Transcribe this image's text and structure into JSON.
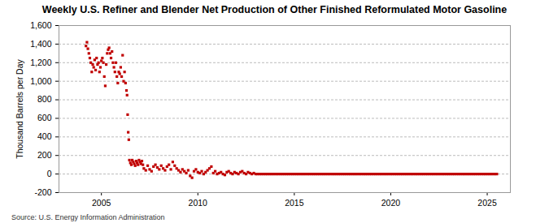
{
  "chart_data": {
    "type": "scatter",
    "title": "Weekly U.S. Refiner and Blender Net Production of Other Finished Reformulated Motor Gasoline",
    "y_label": "Thousand Barrels per Day",
    "source": "Source: U.S. Energy Information Administration",
    "color": "#c00000",
    "marker": "square",
    "grid": true,
    "xlim": [
      2002.8,
      2026.2
    ],
    "xticks": [
      2005,
      2010,
      2015,
      2020,
      2025
    ],
    "ylim": [
      -200,
      1600
    ],
    "yticks": [
      -200,
      0,
      200,
      400,
      600,
      800,
      {
        "value": 1000,
        "label": "1,000"
      },
      {
        "value": 1200,
        "label": "1,200"
      },
      {
        "value": 1400,
        "label": "1,400"
      },
      {
        "value": 1600,
        "label": "1,600"
      }
    ],
    "x": [
      2004.2,
      2004.25,
      2004.3,
      2004.35,
      2004.4,
      2004.45,
      2004.5,
      2004.55,
      2004.6,
      2004.65,
      2004.7,
      2004.75,
      2004.8,
      2004.85,
      2004.9,
      2004.95,
      2005.0,
      2005.05,
      2005.1,
      2005.15,
      2005.2,
      2005.25,
      2005.3,
      2005.35,
      2005.4,
      2005.45,
      2005.5,
      2005.55,
      2005.6,
      2005.65,
      2005.7,
      2005.75,
      2005.8,
      2005.85,
      2005.9,
      2005.95,
      2006.0,
      2006.05,
      2006.1,
      2006.15,
      2006.2,
      2006.25,
      2006.3,
      2006.33,
      2006.36,
      2006.39,
      2006.42,
      2006.45,
      2006.5,
      2006.55,
      2006.6,
      2006.65,
      2006.7,
      2006.75,
      2006.8,
      2006.85,
      2006.9,
      2006.95,
      2007.0,
      2007.05,
      2007.1,
      2007.15,
      2007.2,
      2007.3,
      2007.4,
      2007.5,
      2007.6,
      2007.7,
      2007.8,
      2007.9,
      2008.0,
      2008.1,
      2008.2,
      2008.3,
      2008.4,
      2008.5,
      2008.6,
      2008.7,
      2008.8,
      2008.9,
      2009.0,
      2009.1,
      2009.2,
      2009.3,
      2009.4,
      2009.5,
      2009.6,
      2009.7,
      2009.8,
      2009.9,
      2010.0,
      2010.1,
      2010.2,
      2010.3,
      2010.4,
      2010.5,
      2010.6,
      2010.7,
      2010.8,
      2010.9,
      2011.0,
      2011.1,
      2011.2,
      2011.3,
      2011.4,
      2011.5,
      2011.6,
      2011.7,
      2011.8,
      2011.9,
      2012.0,
      2012.1,
      2012.2,
      2012.3,
      2012.4,
      2012.5,
      2012.6,
      2012.7,
      2012.8,
      2012.9,
      2013.0,
      2013.1,
      2013.2,
      2013.3,
      2013.4,
      2013.5,
      2013.6,
      2013.7,
      2013.8,
      2013.9,
      2014.0,
      2014.1,
      2014.2,
      2014.3,
      2014.4,
      2014.5,
      2014.6,
      2014.7,
      2014.8,
      2014.9,
      2015.0,
      2015.1,
      2015.2,
      2015.3,
      2015.4,
      2015.5,
      2015.6,
      2015.7,
      2015.8,
      2015.9,
      2016.0,
      2016.1,
      2016.2,
      2016.3,
      2016.4,
      2016.5,
      2016.6,
      2016.7,
      2016.8,
      2016.9,
      2017.0,
      2017.1,
      2017.2,
      2017.3,
      2017.4,
      2017.5,
      2017.6,
      2017.7,
      2017.8,
      2017.9,
      2018.0,
      2018.1,
      2018.2,
      2018.3,
      2018.4,
      2018.5,
      2018.6,
      2018.7,
      2018.8,
      2018.9,
      2019.0,
      2019.1,
      2019.2,
      2019.3,
      2019.4,
      2019.5,
      2019.6,
      2019.7,
      2019.8,
      2019.9,
      2020.0,
      2020.1,
      2020.2,
      2020.3,
      2020.4,
      2020.5,
      2020.6,
      2020.7,
      2020.8,
      2020.9,
      2021.0,
      2021.1,
      2021.2,
      2021.3,
      2021.4,
      2021.5,
      2021.6,
      2021.7,
      2021.8,
      2021.9,
      2022.0,
      2022.1,
      2022.2,
      2022.3,
      2022.4,
      2022.5,
      2022.6,
      2022.7,
      2022.8,
      2022.9,
      2023.0,
      2023.1,
      2023.2,
      2023.3,
      2023.4,
      2023.5,
      2023.6,
      2023.7,
      2023.8,
      2023.9,
      2024.0,
      2024.1,
      2024.2,
      2024.3,
      2024.4,
      2024.5,
      2024.6,
      2024.7,
      2024.8,
      2024.9,
      2025.0,
      2025.1,
      2025.2,
      2025.3,
      2025.4,
      2025.5
    ],
    "values": [
      1380,
      1420,
      1350,
      1300,
      1250,
      1200,
      1100,
      1180,
      1150,
      1230,
      1120,
      1250,
      1180,
      1200,
      1100,
      1150,
      1220,
      1250,
      1200,
      1050,
      950,
      1180,
      1300,
      1340,
      1360,
      1300,
      1250,
      1320,
      1200,
      1150,
      1100,
      1200,
      1050,
      980,
      1100,
      1080,
      1150,
      1050,
      1280,
      1000,
      1100,
      980,
      900,
      850,
      640,
      450,
      370,
      150,
      120,
      100,
      150,
      130,
      110,
      90,
      140,
      120,
      100,
      150,
      130,
      110,
      140,
      100,
      60,
      40,
      90,
      50,
      30,
      80,
      100,
      70,
      50,
      90,
      60,
      40,
      80,
      100,
      50,
      130,
      90,
      60,
      40,
      20,
      50,
      30,
      10,
      40,
      -20,
      -40,
      30,
      50,
      20,
      10,
      30,
      0,
      20,
      40,
      60,
      80,
      10,
      30,
      0,
      10,
      20,
      0,
      -10,
      20,
      30,
      10,
      0,
      20,
      10,
      0,
      20,
      30,
      10,
      0,
      20,
      10,
      0,
      10,
      0,
      0,
      0,
      0,
      0,
      0,
      0,
      0,
      0,
      0,
      0,
      0,
      0,
      0,
      0,
      0,
      0,
      0,
      0,
      0,
      0,
      0,
      0,
      0,
      0,
      0,
      0,
      0,
      0,
      0,
      0,
      0,
      0,
      0,
      0,
      0,
      0,
      0,
      0,
      0,
      0,
      0,
      0,
      0,
      0,
      0,
      0,
      0,
      0,
      0,
      0,
      0,
      0,
      0,
      0,
      0,
      0,
      0,
      0,
      0,
      0,
      0,
      0,
      0,
      0,
      0,
      0,
      0,
      0,
      0,
      0,
      0,
      0,
      0,
      0,
      0,
      0,
      0,
      0,
      0,
      0,
      0,
      0,
      0,
      0,
      0,
      0,
      0,
      0,
      0,
      0,
      0,
      0,
      0,
      0,
      0,
      0,
      0,
      0,
      0,
      0,
      0,
      0,
      0,
      0,
      0,
      0,
      0,
      0,
      0,
      0,
      0,
      0,
      0,
      0,
      0,
      0,
      0,
      0,
      0,
      0,
      0,
      0,
      0,
      0,
      0
    ]
  }
}
